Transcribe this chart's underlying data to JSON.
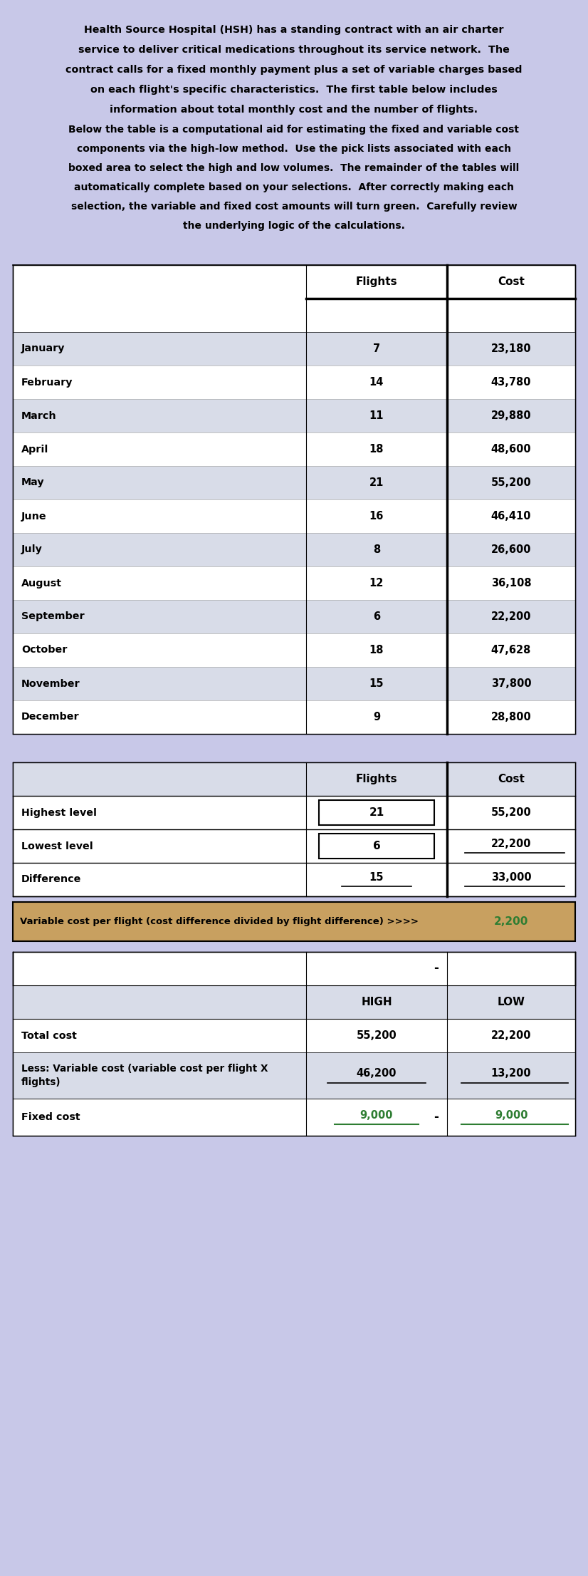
{
  "bg_color": "#c8c8e8",
  "white": "#ffffff",
  "row_blue": "#d8dce8",
  "orange_brown": "#c8a060",
  "green_color": "#2e7d32",
  "months": [
    "January",
    "February",
    "March",
    "April",
    "May",
    "June",
    "July",
    "August",
    "September",
    "October",
    "November",
    "December"
  ],
  "flights": [
    7,
    14,
    11,
    18,
    21,
    16,
    8,
    12,
    6,
    18,
    15,
    9
  ],
  "costs": [
    23180,
    43780,
    29880,
    48600,
    55200,
    46410,
    26600,
    36108,
    22200,
    47628,
    37800,
    28800
  ],
  "title_lines": [
    "Health Source Hospital (HSH) has a standing contract with an air charter",
    "service to deliver critical medications throughout its service network.  The",
    "contract calls for a fixed monthly payment plus a set of variable charges based",
    "on each flight's specific characteristics.  The first table below includes",
    "information about total monthly cost and the number of flights."
  ],
  "subtitle_lines": [
    "Below the table is a computational aid for estimating the fixed and variable cost",
    "components via the high-low method.  Use the pick lists associated with each",
    "boxed area to select the high and low volumes.  The remainder of the tables will",
    "automatically complete based on your selections.  After correctly making each",
    "selection, the variable and fixed cost amounts will turn green.  Carefully review",
    "the underlying logic of the calculations."
  ],
  "high_flights": 21,
  "high_cost": 55200,
  "low_flights": 6,
  "low_cost": 22200,
  "diff_flights": 15,
  "diff_cost": 33000,
  "var_cost_per_flight": 2200,
  "high_var_cost": 46200,
  "low_var_cost": 13200,
  "high_fixed_cost": 9000,
  "low_fixed_cost": 9000
}
